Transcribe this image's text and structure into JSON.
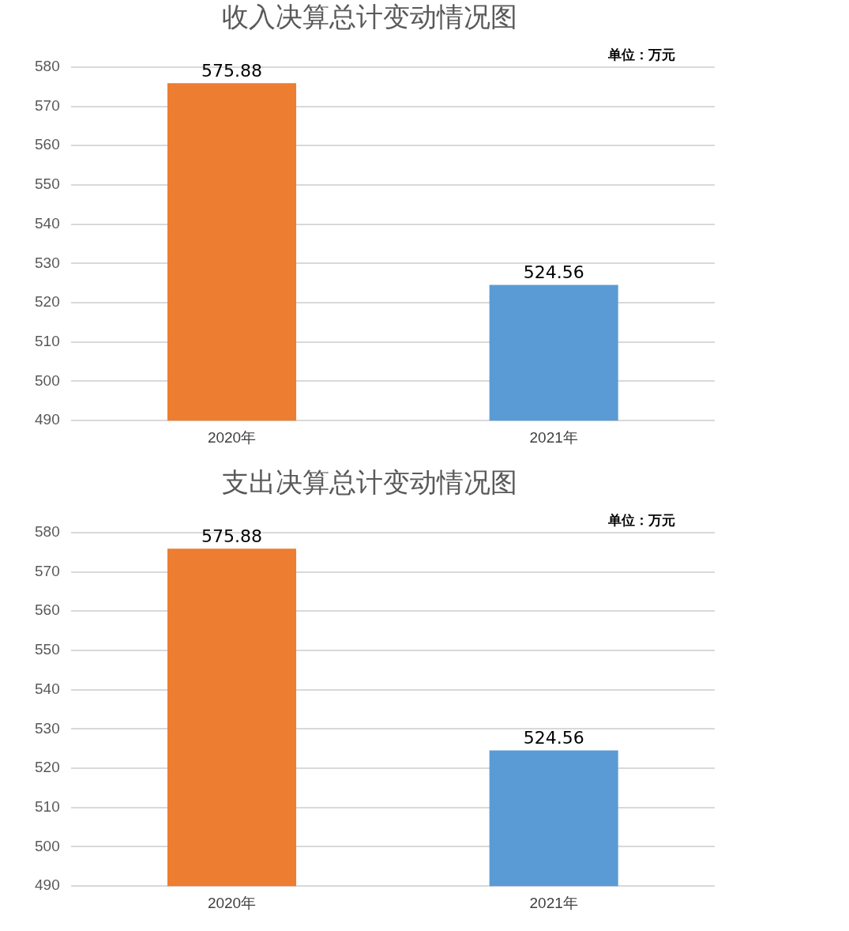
{
  "chart_data": [
    {
      "type": "bar",
      "title": "收入决算总计变动情况图",
      "annotations": [
        "单位：万元"
      ],
      "categories": [
        "2020年",
        "2021年"
      ],
      "values": [
        575.88,
        524.56
      ],
      "colors": [
        "#ed7d31",
        "#5b9bd5"
      ],
      "ylim": [
        490,
        580
      ],
      "yticks": [
        490,
        500,
        510,
        520,
        530,
        540,
        550,
        560,
        570,
        580
      ],
      "grid": "y",
      "data_labels": true,
      "legend": false
    },
    {
      "type": "bar",
      "title": "支出决算总计变动情况图",
      "annotations": [
        "单位：万元"
      ],
      "categories": [
        "2020年",
        "2021年"
      ],
      "values": [
        575.88,
        524.56
      ],
      "colors": [
        "#ed7d31",
        "#5b9bd5"
      ],
      "ylim": [
        490,
        580
      ],
      "yticks": [
        490,
        500,
        510,
        520,
        530,
        540,
        550,
        560,
        570,
        580
      ],
      "grid": "y",
      "data_labels": true,
      "legend": false
    }
  ]
}
